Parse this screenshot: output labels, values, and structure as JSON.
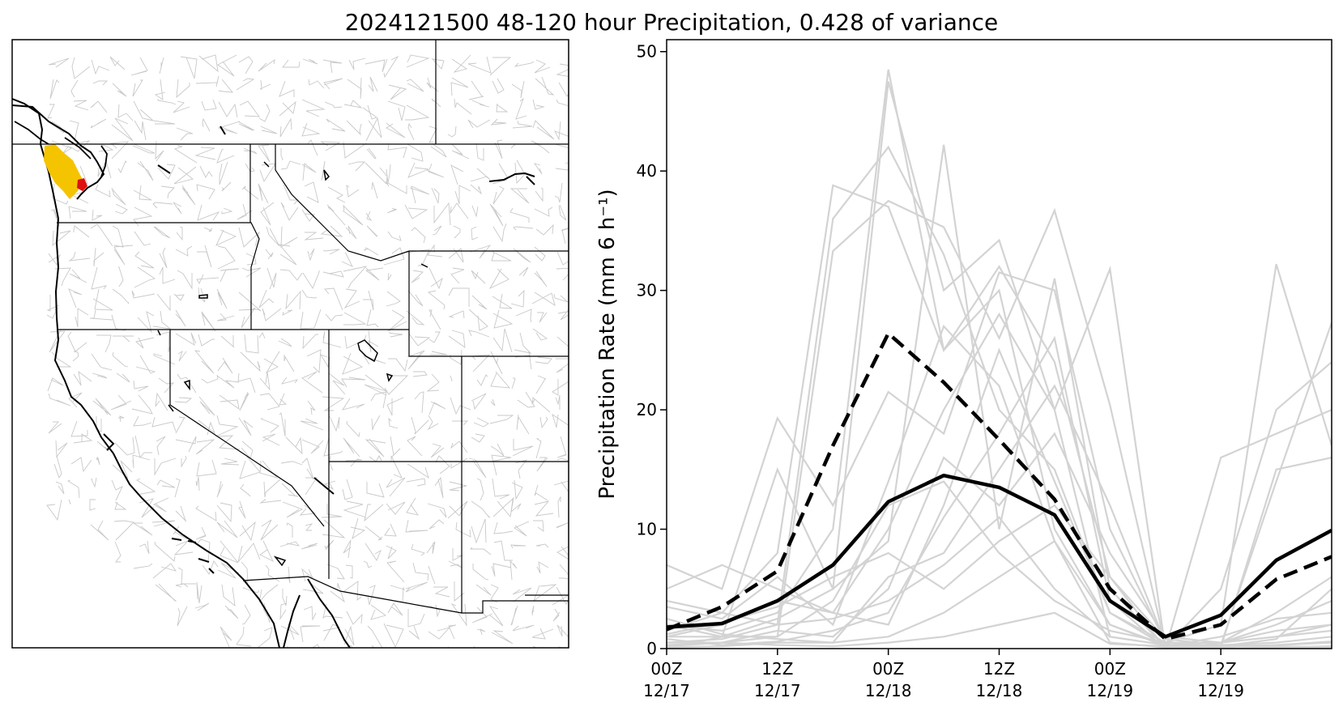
{
  "title": "2024121500 48-120 hour Precipitation, 0.428 of variance",
  "map": {
    "highlight_colors": {
      "primary": "#f5c400",
      "secondary": "#e01010"
    },
    "border_color": "#000000",
    "basin_color": "#c8c8c8"
  },
  "chart_data": {
    "type": "line",
    "title": "2024121500 48-120 hour Precipitation, 0.428 of variance",
    "xlabel": "",
    "ylabel": "Precipitation Rate (mm 6 h⁻¹)",
    "ylim": [
      0,
      51
    ],
    "yticks": [
      0,
      10,
      20,
      30,
      40,
      50
    ],
    "x_hours": [
      0,
      6,
      12,
      18,
      24,
      30,
      36,
      42,
      48,
      54,
      60,
      66,
      72
    ],
    "xlim": [
      0,
      72
    ],
    "xticks": [
      {
        "hour": 0,
        "line1": "00Z",
        "line2": "12/17"
      },
      {
        "hour": 12,
        "line1": "12Z",
        "line2": "12/17"
      },
      {
        "hour": 24,
        "line1": "00Z",
        "line2": "12/18"
      },
      {
        "hour": 36,
        "line1": "12Z",
        "line2": "12/18"
      },
      {
        "hour": 48,
        "line1": "00Z",
        "line2": "12/19"
      },
      {
        "hour": 60,
        "line1": "12Z",
        "line2": "12/19"
      }
    ],
    "grid": false,
    "legend": "none",
    "colors": {
      "members": "#d3d3d3",
      "highlight": "#000000"
    },
    "series": [
      {
        "style": "solid-bold",
        "values": [
          1.8,
          2.1,
          4.0,
          7.0,
          12.3,
          14.5,
          13.5,
          11.2,
          4.0,
          1.0,
          2.8,
          7.4,
          9.9
        ]
      },
      {
        "style": "dashed-bold",
        "values": [
          1.6,
          3.5,
          6.5,
          17.0,
          26.4,
          22.3,
          17.5,
          12.5,
          5.0,
          0.8,
          2.0,
          5.8,
          7.7
        ]
      },
      {
        "style": "member",
        "values": [
          1.0,
          1.0,
          2.5,
          5.0,
          47.5,
          30.0,
          34.2,
          20.0,
          1.0,
          0.3,
          0.5,
          1.5,
          2.0
        ]
      },
      {
        "style": "member",
        "values": [
          1.5,
          3.0,
          8.0,
          38.8,
          37.0,
          25.0,
          30.0,
          10.0,
          2.0,
          0.2,
          1.0,
          2.5,
          3.0
        ]
      },
      {
        "style": "member",
        "values": [
          0.5,
          0.8,
          2.0,
          36.0,
          42.0,
          33.0,
          20.0,
          15.0,
          3.0,
          0.5,
          0.5,
          1.0,
          1.5
        ]
      },
      {
        "style": "member",
        "values": [
          2.0,
          1.5,
          3.0,
          10.0,
          48.5,
          25.0,
          32.0,
          24.0,
          6.0,
          0.0,
          16.0,
          18.0,
          20.0
        ]
      },
      {
        "style": "member",
        "values": [
          0.3,
          0.5,
          1.0,
          33.3,
          37.5,
          35.3,
          26.0,
          36.7,
          20.4,
          0.2,
          0.3,
          14.0,
          27.3
        ]
      },
      {
        "style": "member",
        "values": [
          7.0,
          5.0,
          19.3,
          12.0,
          21.5,
          18.0,
          31.5,
          30.0,
          10.0,
          0.5,
          2.0,
          32.2,
          17.0
        ]
      },
      {
        "style": "member",
        "values": [
          0.0,
          1.0,
          15.0,
          5.0,
          9.0,
          42.2,
          10.0,
          31.0,
          5.0,
          0.1,
          5.0,
          20.0,
          24.0
        ]
      },
      {
        "style": "member",
        "values": [
          1.0,
          2.0,
          4.0,
          3.0,
          10.0,
          20.0,
          28.0,
          20.0,
          31.8,
          0.0,
          0.2,
          0.8,
          5.0
        ]
      },
      {
        "style": "member",
        "values": [
          3.5,
          2.5,
          6.0,
          2.0,
          14.0,
          27.0,
          22.0,
          9.0,
          2.0,
          0.3,
          0.1,
          15.0,
          16.0
        ]
      },
      {
        "style": "member",
        "values": [
          0.2,
          0.5,
          1.5,
          1.0,
          5.0,
          16.0,
          12.0,
          18.0,
          8.0,
          1.0,
          0.5,
          2.0,
          4.0
        ]
      },
      {
        "style": "member",
        "values": [
          5.0,
          7.0,
          5.0,
          3.0,
          2.0,
          12.0,
          25.0,
          14.0,
          3.0,
          0.2,
          0.3,
          0.5,
          1.0
        ]
      },
      {
        "style": "member",
        "values": [
          2.5,
          1.2,
          0.8,
          0.5,
          6.0,
          8.0,
          15.0,
          22.0,
          12.0,
          0.5,
          0.5,
          1.0,
          2.0
        ]
      },
      {
        "style": "member",
        "values": [
          0.8,
          0.3,
          0.6,
          1.5,
          3.0,
          11.0,
          18.0,
          26.0,
          4.0,
          0.0,
          0.2,
          0.3,
          0.5
        ]
      },
      {
        "style": "member",
        "values": [
          1.2,
          2.2,
          3.5,
          6.0,
          8.0,
          5.0,
          9.0,
          12.0,
          6.0,
          0.8,
          0.3,
          0.2,
          0.1
        ]
      },
      {
        "style": "member",
        "values": [
          0.1,
          0.2,
          0.5,
          0.5,
          1.0,
          3.0,
          6.0,
          9.0,
          0.5,
          0.1,
          0.0,
          0.0,
          0.0
        ]
      },
      {
        "style": "member",
        "values": [
          4.0,
          3.0,
          2.0,
          2.5,
          4.0,
          7.0,
          11.0,
          5.0,
          1.0,
          0.3,
          0.2,
          0.1,
          0.2
        ]
      },
      {
        "style": "member",
        "values": [
          0.5,
          0.5,
          0.3,
          0.2,
          0.5,
          1.0,
          2.0,
          3.0,
          0.4,
          0.2,
          0.1,
          0.3,
          0.6
        ]
      },
      {
        "style": "member",
        "values": [
          2.0,
          1.0,
          1.0,
          4.0,
          12.0,
          14.0,
          8.0,
          4.0,
          1.5,
          0.5,
          0.5,
          3.0,
          6.0
        ]
      }
    ]
  }
}
